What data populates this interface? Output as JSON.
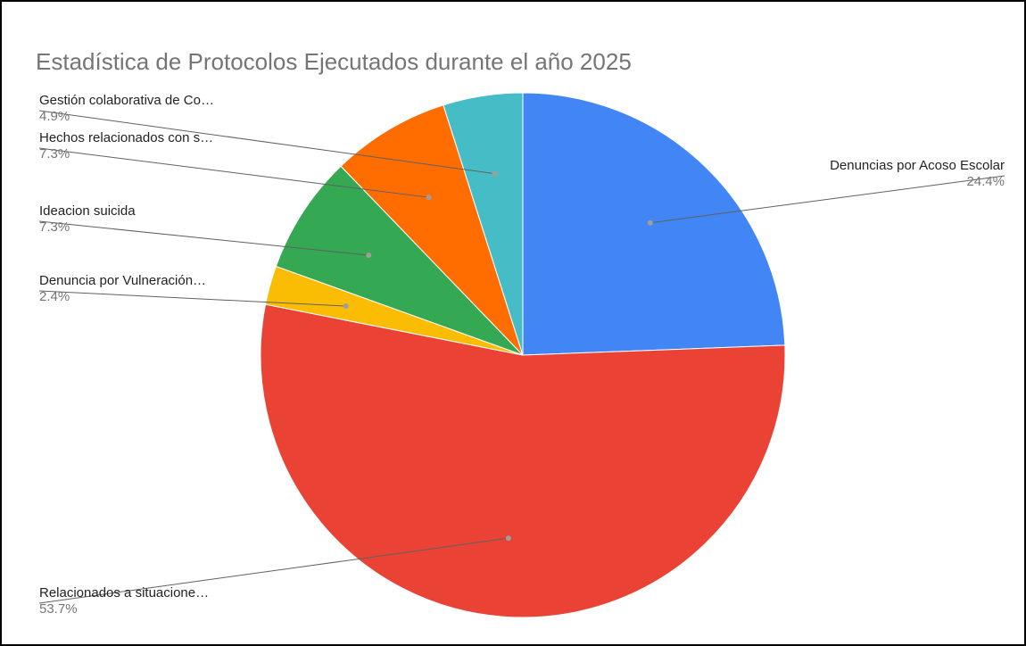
{
  "chart_data": {
    "type": "pie",
    "title": "Estadística de Protocolos Ejecutados durante el año 2025",
    "start_angle_deg": 0,
    "direction": "clockwise",
    "label_style": "leader-lines",
    "slices": [
      {
        "label": "Denuncias por Acoso Escolar",
        "value_pct": 24.4,
        "percent_label": "24.4%",
        "color": "#4285f4"
      },
      {
        "label": "Relacionados a situacione…",
        "value_pct": 53.7,
        "percent_label": "53.7%",
        "color": "#ea4335"
      },
      {
        "label": "Denuncia por Vulneración…",
        "value_pct": 2.4,
        "percent_label": "2.4%",
        "color": "#fbbc04"
      },
      {
        "label": "Ideacion suicida",
        "value_pct": 7.3,
        "percent_label": "7.3%",
        "color": "#34a853"
      },
      {
        "label": "Hechos relacionados con s…",
        "value_pct": 7.3,
        "percent_label": "7.3%",
        "color": "#ff6d01"
      },
      {
        "label": "Gestión colaborativa de Co…",
        "value_pct": 4.9,
        "percent_label": "4.9%",
        "color": "#46bdc6"
      }
    ]
  }
}
